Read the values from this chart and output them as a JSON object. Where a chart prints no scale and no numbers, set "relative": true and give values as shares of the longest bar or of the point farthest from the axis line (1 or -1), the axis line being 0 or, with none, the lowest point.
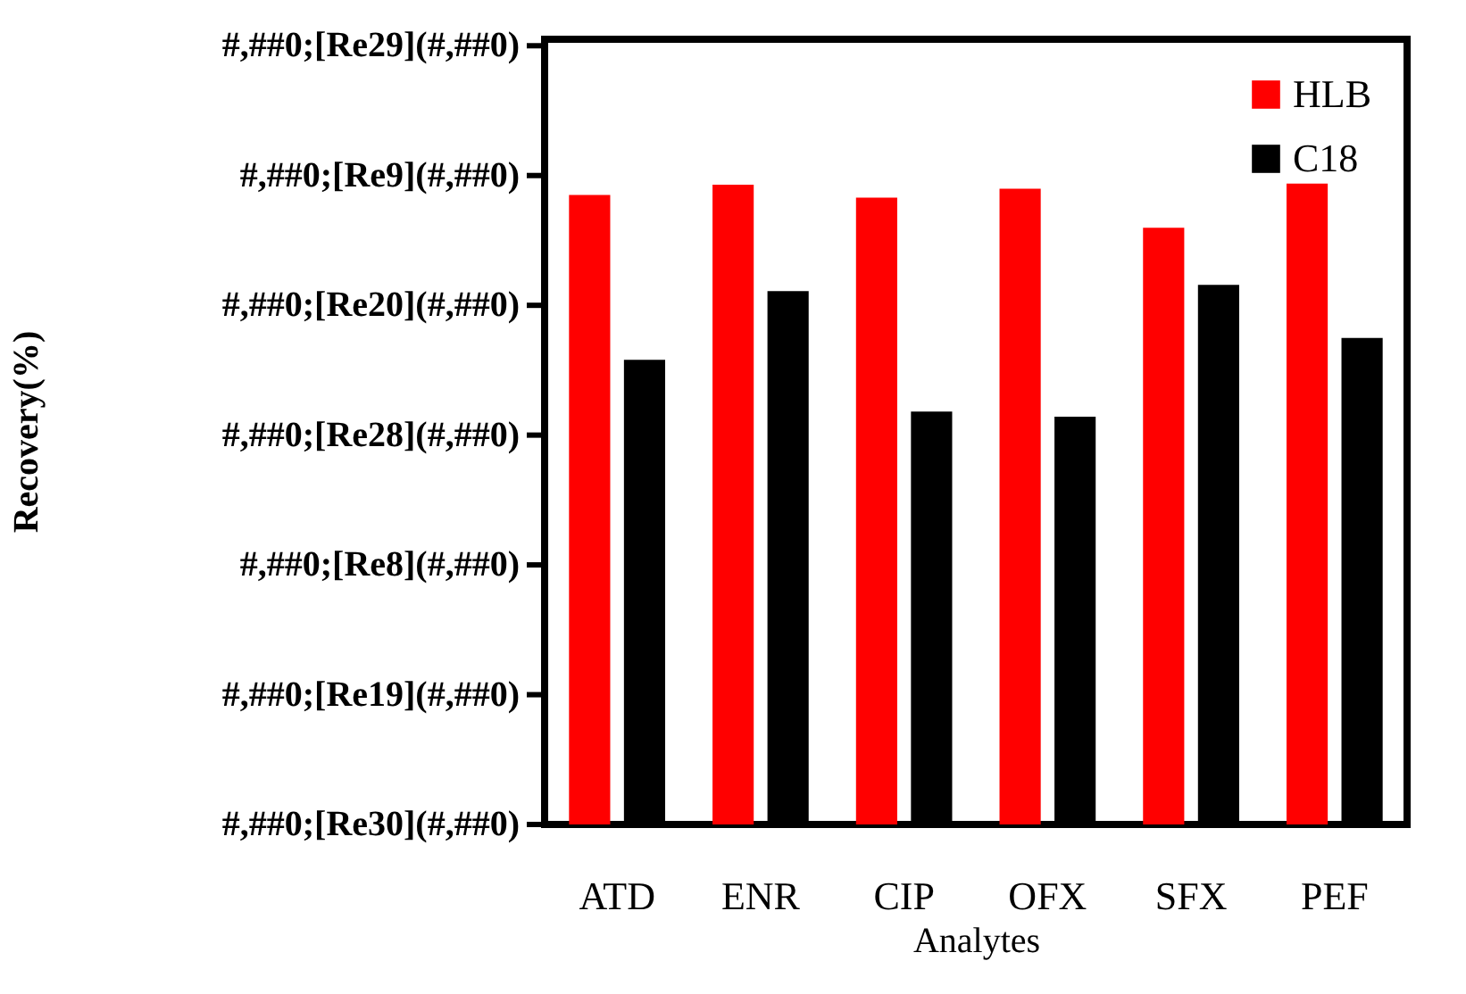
{
  "chart_data": {
    "type": "bar",
    "relative": true,
    "xlabel": "Analytes",
    "categories": [
      "ATD",
      "ENR",
      "CIP",
      "OFX",
      "SFX",
      "PEF"
    ],
    "series": [
      {
        "name": "HLB",
        "color": "#ff0000",
        "values": [
          0.982,
          0.998,
          0.978,
          0.992,
          0.931,
          1
        ]
      },
      {
        "name": "C18",
        "color": "#000000",
        "values": [
          0.725,
          0.832,
          0.644,
          0.636,
          0.842,
          0.759
        ]
      }
    ],
    "annotations": [
      "Recovery(%)",
      "#,##0;[Re29](#,##0)",
      "#,##0;[Re9](#,##0)",
      "#,##0;[Re20](#,##0)",
      "#,##0;[Re28](#,##0)",
      "#,##0;[Re8](#,##0)",
      "#,##0;[Re19](#,##0)",
      "#,##0;[Re30](#,##0)"
    ],
    "legend": "top right"
  }
}
